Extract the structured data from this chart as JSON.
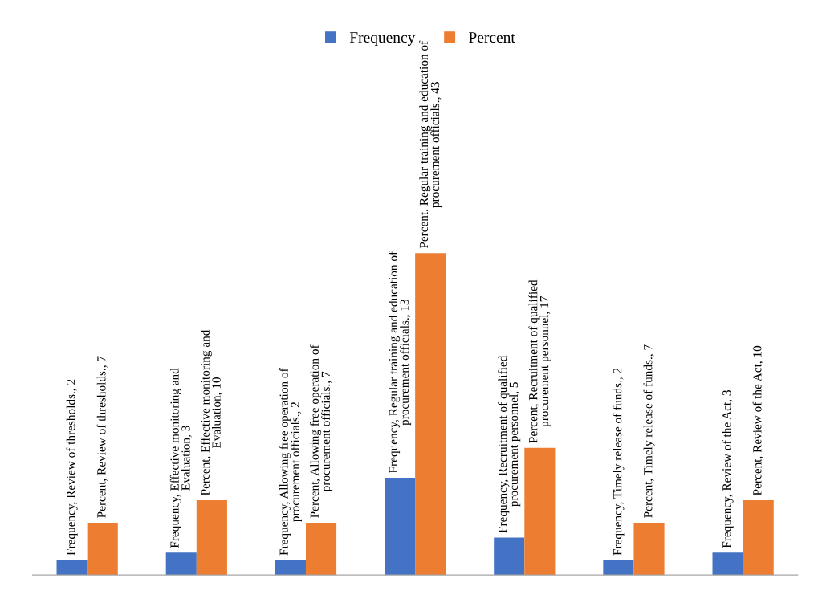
{
  "chart_data": {
    "type": "bar",
    "categories": [
      null,
      null,
      null,
      null,
      null,
      null,
      null
    ],
    "series": [
      {
        "name": "Frequency",
        "color": "#4472c4",
        "values": [
          2,
          3,
          2,
          13,
          5,
          2,
          3
        ],
        "value_labels": [
          "Frequency, Review of thresholds., 2",
          "Frequency, Effective monitoring and Evaluation, 3",
          "Frequency, Allowing free operation of procurement officials., 2",
          "Frequency, Regular training and education of procurement officials., 13",
          "Frequency, Recruitment of qualified procurement personnel, 5",
          "Frequency, Timely release of funds., 2",
          "Frequency, Review of the Act, 3"
        ]
      },
      {
        "name": "Percent",
        "color": "#ed7d31",
        "values": [
          7,
          10,
          7,
          43,
          17,
          7,
          10
        ],
        "value_labels": [
          "Percent, Review of thresholds., 7",
          "Percent, Effective monitoring and Evaluation, 10",
          "Percent, Allowing free operation of procurement officials., 7",
          "Percent, Regular training and education of procurement officials., 43",
          "Percent, Recruitment of qualified procurement personnel, 17",
          "Percent, Timely release of funds., 7",
          "Percent, Review of the Act, 10"
        ]
      }
    ],
    "legend": "top",
    "grid": false,
    "tick_labels": false
  }
}
